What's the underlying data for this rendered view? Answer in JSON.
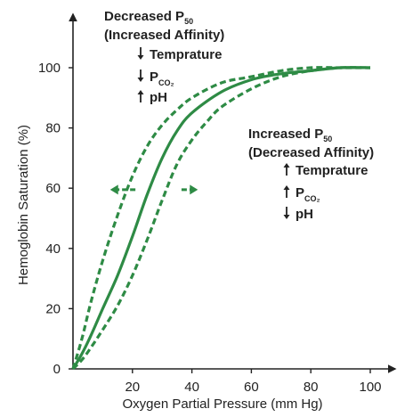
{
  "chart_data": {
    "type": "line",
    "title": "",
    "xlabel": "Oxygen Partial Pressure (mm Hg)",
    "ylabel": "Hemoglobin Saturation (%)",
    "xlim": [
      0,
      100
    ],
    "ylim": [
      0,
      100
    ],
    "xticks": [
      "20",
      "40",
      "60",
      "80",
      "100"
    ],
    "yticks": [
      "0",
      "20",
      "40",
      "60",
      "80",
      "100"
    ],
    "grid": false,
    "legend": "none",
    "colors": {
      "curve": "#2e8b45",
      "axis": "#222222",
      "text": "#222222"
    },
    "series": [
      {
        "style": "solid",
        "x": [
          0,
          3,
          6,
          10,
          15,
          20,
          25,
          30,
          35,
          40,
          50,
          60,
          70,
          80,
          90,
          100
        ],
        "y": [
          0,
          5,
          11,
          20,
          31,
          44,
          58,
          70,
          79,
          85,
          92,
          96,
          98,
          99,
          100,
          100
        ]
      },
      {
        "style": "dashed",
        "x": [
          0,
          3,
          6,
          10,
          15,
          20,
          25,
          30,
          35,
          40,
          50,
          60,
          70,
          80,
          90,
          100
        ],
        "y": [
          0,
          10,
          22,
          36,
          51,
          64,
          74,
          81,
          86,
          90,
          95,
          97,
          99,
          100,
          100,
          100
        ]
      },
      {
        "style": "dashed",
        "x": [
          0,
          3,
          6,
          10,
          15,
          20,
          25,
          30,
          35,
          40,
          45,
          50,
          60,
          70,
          80,
          90,
          100
        ],
        "y": [
          0,
          3,
          7,
          13,
          21,
          31,
          43,
          56,
          68,
          76,
          82,
          87,
          93,
          97,
          99,
          100,
          100
        ]
      }
    ],
    "annotations": {
      "left": {
        "title_a": "Decreased P",
        "title_sub": "50",
        "title_b": "(Increased Affinity)",
        "items": [
          {
            "arrow": "down",
            "text": "Temprature",
            "sub": ""
          },
          {
            "arrow": "down",
            "text": "P",
            "sub": "CO₂"
          },
          {
            "arrow": "up",
            "text": "pH",
            "sub": ""
          }
        ]
      },
      "right": {
        "title_a": "Increased P",
        "title_sub": "50",
        "title_b": "(Decreased Affinity)",
        "items": [
          {
            "arrow": "up",
            "text": "Temprature",
            "sub": ""
          },
          {
            "arrow": "up",
            "text": "P",
            "sub": "CO₂"
          },
          {
            "arrow": "down",
            "text": "pH",
            "sub": ""
          }
        ]
      }
    }
  }
}
